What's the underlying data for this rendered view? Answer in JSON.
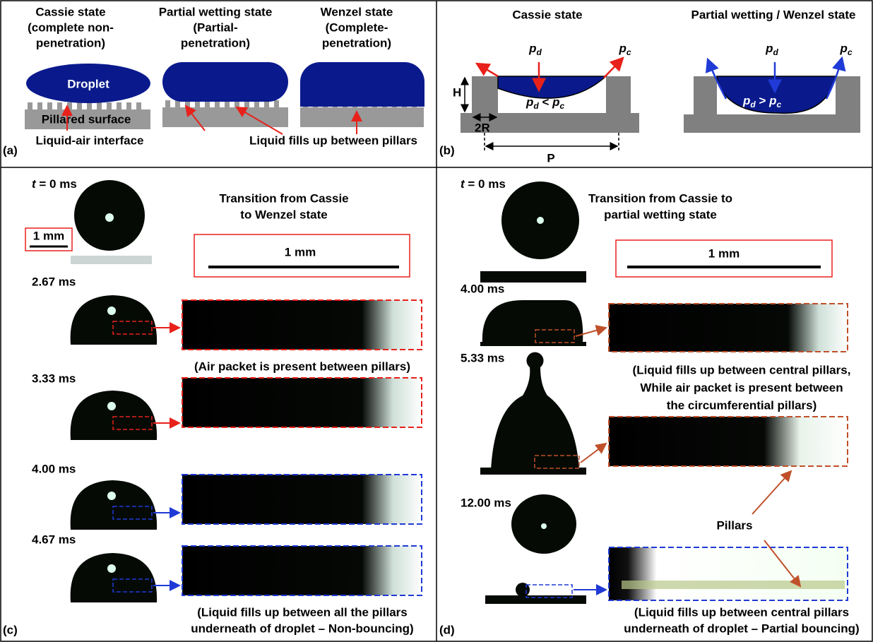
{
  "panel_a": {
    "label": "(a)",
    "cassie": [
      "Cassie state",
      "(complete non-",
      "penetration)"
    ],
    "partial": [
      "Partial wetting state",
      "(Partial-",
      "penetration)"
    ],
    "wenzel": [
      "Wenzel state",
      "(Complete-",
      "penetration)"
    ],
    "droplet": "Droplet",
    "surface": "Pillared surface",
    "interface": "Liquid-air interface",
    "fills": "Liquid fills up between pillars"
  },
  "panel_b": {
    "label": "(b)",
    "cassie_title": "Cassie state",
    "wenzel_title": "Partial wetting / Wenzel state",
    "p": "p",
    "d": "d",
    "c": "c",
    "H": "H",
    "R": "2R",
    "P": "P",
    "lt": " < ",
    "gt": " > "
  },
  "panel_c": {
    "label": "(c)",
    "t": "t",
    "t0": " = 0 ms",
    "title": [
      "Transition from Cassie",
      "to Wenzel state"
    ],
    "scale": "1 mm",
    "times": [
      "2.67 ms",
      "3.33 ms",
      "4.00 ms",
      "4.67 ms"
    ],
    "air": "(Air packet is present between pillars)",
    "caption": [
      "(Liquid fills up between all the pillars",
      "underneath of droplet – Non-bouncing)"
    ]
  },
  "panel_d": {
    "label": "(d)",
    "t": "t",
    "t0": " = 0 ms",
    "title": [
      "Transition from Cassie to",
      "partial wetting state"
    ],
    "scale": "1 mm",
    "times": [
      "4.00 ms",
      "5.33 ms",
      "12.00 ms"
    ],
    "note": [
      "(Liquid fills up between central pillars,",
      "While air packet is present between",
      "the circumferential pillars)"
    ],
    "pillars": "Pillars",
    "caption": [
      "(Liquid fills up between central pillars",
      "underneath of droplet – Partial bouncing)"
    ]
  }
}
